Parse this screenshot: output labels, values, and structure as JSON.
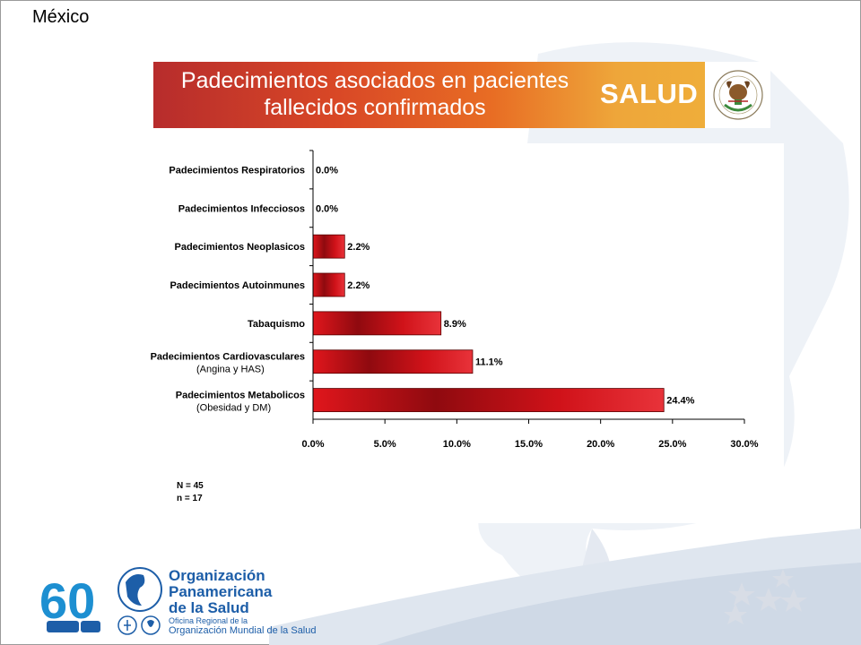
{
  "header": {
    "country": "México"
  },
  "banner": {
    "title_line1": "Padecimientos asociados en pacientes",
    "title_line2": "fallecidos confirmados",
    "brand": "SALUD",
    "seal_icon": "mexican-coat-of-arms-icon"
  },
  "chart_data": {
    "type": "bar",
    "orientation": "horizontal",
    "categories": [
      "Padecimientos Respiratorios",
      "Padecimientos Infecciosos",
      "Padecimientos Neoplasicos",
      "Padecimientos Autoinmunes",
      "Tabaquismo",
      "Padecimientos Cardiovasculares",
      "Padecimientos Metabolicos"
    ],
    "category_sublabels": [
      "",
      "",
      "",
      "",
      "",
      "(Angina y HAS)",
      "(Obesidad y DM)"
    ],
    "values": [
      0.0,
      0.0,
      2.2,
      2.2,
      8.9,
      11.1,
      24.4
    ],
    "data_labels": [
      "0.0%",
      "0.0%",
      "2.2%",
      "2.2%",
      "8.9%",
      "11.1%",
      "24.4%"
    ],
    "xlim": [
      0,
      30
    ],
    "xticks": [
      "0.0%",
      "5.0%",
      "10.0%",
      "15.0%",
      "20.0%",
      "25.0%",
      "30.0%"
    ],
    "bar_color": "#c8141b",
    "grid": false,
    "legend": "none"
  },
  "notes": {
    "N": "N = 45",
    "n": "n = 17"
  },
  "footer": {
    "anniversary": "60",
    "org_line1": "Organización",
    "org_line2": "Panamericana",
    "org_line3": "de la Salud",
    "sub_line1": "Oficina Regional de la",
    "sub_line2": "Organización Mundial de la Salud",
    "brand_color": "#1d5ea8"
  }
}
